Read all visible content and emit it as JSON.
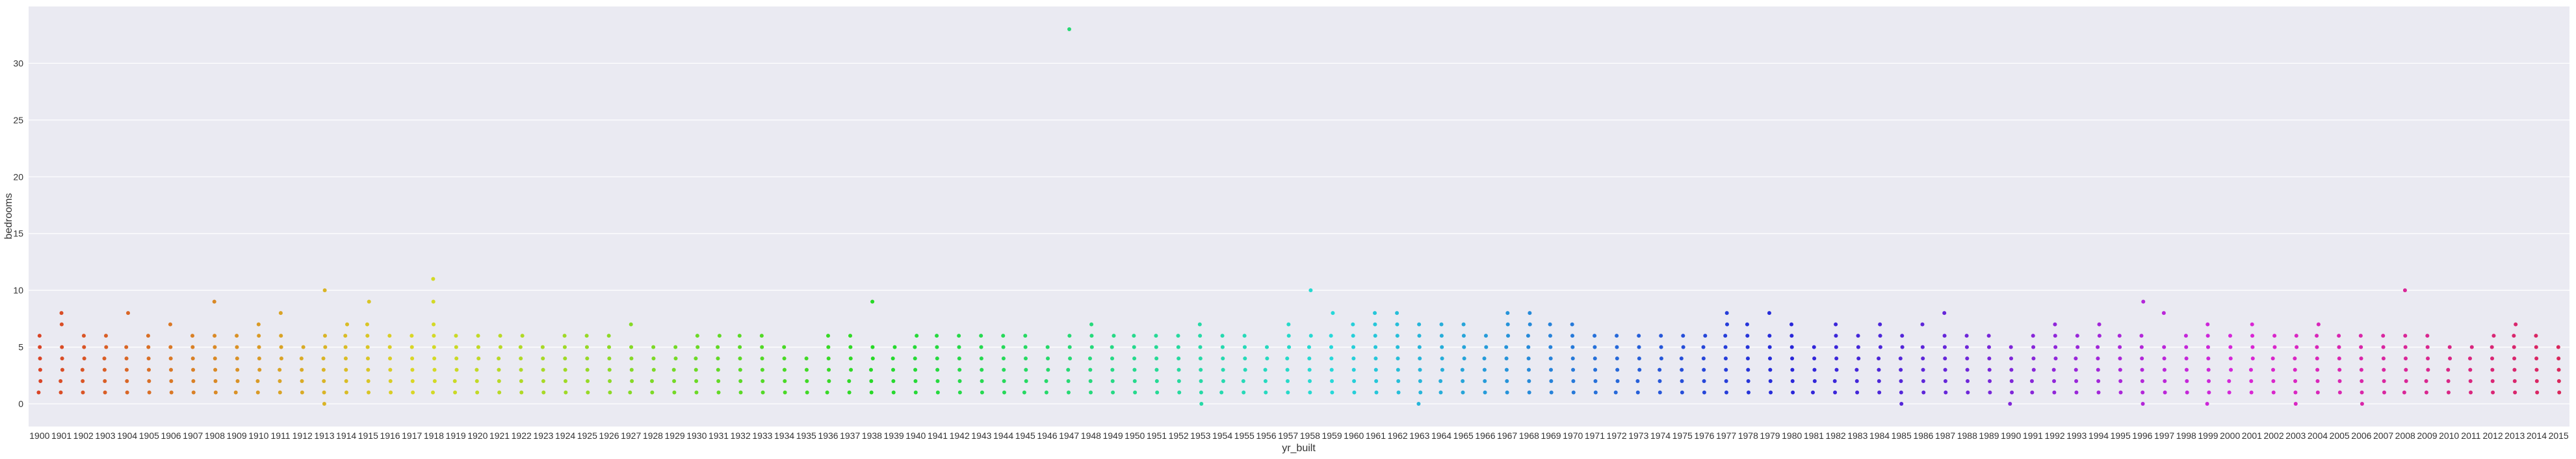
{
  "chart_data": {
    "type": "scatter",
    "subtype": "strip",
    "title": "",
    "xlabel": "yr_built",
    "ylabel": "bedrooms",
    "ylim": [
      -2,
      35
    ],
    "yticks": [
      0,
      5,
      10,
      15,
      20,
      25,
      30
    ],
    "grid": true,
    "legend": "none",
    "background": "#eaeaf2",
    "categories": [
      1900,
      1901,
      1902,
      1903,
      1904,
      1905,
      1906,
      1907,
      1908,
      1909,
      1910,
      1911,
      1912,
      1913,
      1914,
      1915,
      1916,
      1917,
      1918,
      1919,
      1920,
      1921,
      1922,
      1923,
      1924,
      1925,
      1926,
      1927,
      1928,
      1929,
      1930,
      1931,
      1932,
      1933,
      1934,
      1935,
      1936,
      1937,
      1938,
      1939,
      1940,
      1941,
      1942,
      1943,
      1944,
      1945,
      1946,
      1947,
      1948,
      1949,
      1950,
      1951,
      1952,
      1953,
      1954,
      1955,
      1956,
      1957,
      1958,
      1959,
      1960,
      1961,
      1962,
      1963,
      1964,
      1965,
      1966,
      1967,
      1968,
      1969,
      1970,
      1971,
      1972,
      1973,
      1974,
      1975,
      1976,
      1977,
      1978,
      1979,
      1980,
      1981,
      1982,
      1983,
      1984,
      1985,
      1986,
      1987,
      1988,
      1989,
      1990,
      1991,
      1992,
      1993,
      1994,
      1995,
      1996,
      1997,
      1998,
      1999,
      2000,
      2001,
      2002,
      2003,
      2004,
      2005,
      2006,
      2007,
      2008,
      2009,
      2010,
      2011,
      2012,
      2013,
      2014,
      2015
    ],
    "tick_labels": [
      "1900",
      "1901",
      "1902",
      "1903",
      "1904",
      "1905",
      "1906",
      "1907",
      "1908",
      "1909",
      "1910",
      "1911",
      "1912",
      "1913",
      "1914",
      "1915",
      "1916",
      "1917",
      "1918",
      "1919",
      "1920",
      "1921",
      "1922",
      "1923",
      "1924",
      "1925",
      "1926",
      "1927",
      "1928",
      "1929",
      "1930",
      "1931",
      "1932",
      "1933",
      "1934",
      "1935",
      "1936",
      "1937",
      "1938",
      "1939",
      "1940",
      "1941",
      "1942",
      "1943",
      "1944",
      "1945",
      "1946",
      "1947",
      "1948",
      "1949",
      "1950",
      "1951",
      "1952",
      "1953",
      "1954",
      "1955",
      "1956",
      "1957",
      "1958",
      "1959",
      "1960",
      "1961",
      "1962",
      "1963",
      "1964",
      "1965",
      "1966",
      "1967",
      "1968",
      "1969",
      "1970",
      "1971",
      "1972",
      "1973",
      "1974",
      "1975",
      "1976",
      "1977",
      "1978",
      "1979",
      "1980",
      "1981",
      "1982",
      "1983",
      "1984",
      "1985",
      "1986",
      "1987",
      "1988",
      "1989",
      "1990",
      "1991",
      "1992",
      "1993",
      "1994",
      "1995",
      "1996",
      "1997",
      "1998",
      "1999",
      "2000",
      "2001",
      "2002",
      "2003",
      "2004",
      "2005",
      "2006",
      "2007",
      "2008",
      "2009",
      "2010",
      "2011",
      "2012",
      "2013",
      "2014",
      "2015"
    ],
    "values": [
      [
        1,
        2,
        3,
        4,
        5,
        6
      ],
      [
        1,
        2,
        3,
        4,
        5,
        7,
        8
      ],
      [
        1,
        2,
        3,
        4,
        5,
        6
      ],
      [
        1,
        2,
        3,
        4,
        5,
        6
      ],
      [
        1,
        2,
        3,
        4,
        5,
        8
      ],
      [
        1,
        2,
        3,
        4,
        5,
        6
      ],
      [
        1,
        2,
        3,
        4,
        5,
        7
      ],
      [
        1,
        2,
        3,
        4,
        5,
        6
      ],
      [
        1,
        2,
        3,
        4,
        5,
        6,
        9
      ],
      [
        1,
        2,
        3,
        4,
        5,
        6
      ],
      [
        1,
        2,
        3,
        4,
        5,
        6,
        7
      ],
      [
        1,
        2,
        3,
        4,
        5,
        6,
        8
      ],
      [
        1,
        2,
        3,
        4,
        5
      ],
      [
        0,
        1,
        2,
        3,
        4,
        5,
        6,
        10
      ],
      [
        1,
        2,
        3,
        4,
        5,
        6,
        7
      ],
      [
        1,
        2,
        3,
        4,
        5,
        6,
        7,
        9
      ],
      [
        1,
        2,
        3,
        4,
        5,
        6
      ],
      [
        1,
        2,
        3,
        4,
        5,
        6
      ],
      [
        1,
        2,
        3,
        4,
        5,
        6,
        7,
        9,
        11
      ],
      [
        1,
        2,
        3,
        4,
        5,
        6
      ],
      [
        1,
        2,
        3,
        4,
        5,
        6
      ],
      [
        1,
        2,
        3,
        4,
        5,
        6
      ],
      [
        1,
        2,
        3,
        4,
        5,
        6
      ],
      [
        1,
        2,
        3,
        4,
        5
      ],
      [
        1,
        2,
        3,
        4,
        5,
        6
      ],
      [
        1,
        2,
        3,
        4,
        5,
        6
      ],
      [
        1,
        2,
        3,
        4,
        5,
        6
      ],
      [
        1,
        2,
        3,
        4,
        5,
        7
      ],
      [
        1,
        2,
        3,
        4,
        5
      ],
      [
        1,
        2,
        3,
        4,
        5
      ],
      [
        1,
        2,
        3,
        4,
        5,
        6
      ],
      [
        1,
        2,
        3,
        4,
        5,
        6
      ],
      [
        1,
        2,
        3,
        4,
        5,
        6
      ],
      [
        1,
        2,
        3,
        4,
        5,
        6
      ],
      [
        1,
        2,
        3,
        4,
        5
      ],
      [
        1,
        2,
        3,
        4
      ],
      [
        1,
        2,
        3,
        4,
        5,
        6
      ],
      [
        1,
        2,
        3,
        4,
        5,
        6
      ],
      [
        1,
        2,
        3,
        4,
        5,
        9
      ],
      [
        1,
        2,
        3,
        4,
        5
      ],
      [
        1,
        2,
        3,
        4,
        5,
        6
      ],
      [
        1,
        2,
        3,
        4,
        5,
        6
      ],
      [
        1,
        2,
        3,
        4,
        5,
        6
      ],
      [
        1,
        2,
        3,
        4,
        5,
        6
      ],
      [
        1,
        2,
        3,
        4,
        5,
        6
      ],
      [
        1,
        2,
        3,
        4,
        5,
        6
      ],
      [
        1,
        2,
        3,
        4,
        5
      ],
      [
        1,
        2,
        3,
        4,
        5,
        6,
        33
      ],
      [
        1,
        2,
        3,
        4,
        5,
        6,
        7
      ],
      [
        1,
        2,
        3,
        4,
        5,
        6
      ],
      [
        1,
        2,
        3,
        4,
        5,
        6
      ],
      [
        1,
        2,
        3,
        4,
        5,
        6
      ],
      [
        1,
        2,
        3,
        4,
        5,
        6
      ],
      [
        0,
        1,
        2,
        3,
        4,
        5,
        6,
        7
      ],
      [
        1,
        2,
        3,
        4,
        5,
        6
      ],
      [
        1,
        2,
        3,
        4,
        5,
        6
      ],
      [
        1,
        2,
        3,
        4,
        5
      ],
      [
        1,
        2,
        3,
        4,
        5,
        6,
        7
      ],
      [
        1,
        2,
        3,
        4,
        5,
        6,
        10
      ],
      [
        1,
        2,
        3,
        4,
        5,
        6,
        8
      ],
      [
        1,
        2,
        3,
        4,
        5,
        6,
        7
      ],
      [
        1,
        2,
        3,
        4,
        5,
        6,
        7,
        8
      ],
      [
        1,
        2,
        3,
        4,
        5,
        6,
        7,
        8
      ],
      [
        0,
        1,
        2,
        3,
        4,
        5,
        6,
        7
      ],
      [
        1,
        2,
        3,
        4,
        5,
        6,
        7
      ],
      [
        1,
        2,
        3,
        4,
        5,
        6,
        7
      ],
      [
        1,
        2,
        3,
        4,
        5,
        6
      ],
      [
        1,
        2,
        3,
        4,
        5,
        6,
        7,
        8
      ],
      [
        1,
        2,
        3,
        4,
        5,
        6,
        7,
        8
      ],
      [
        1,
        2,
        3,
        4,
        5,
        6,
        7
      ],
      [
        1,
        2,
        3,
        4,
        5,
        6,
        7
      ],
      [
        1,
        2,
        3,
        4,
        5,
        6
      ],
      [
        1,
        2,
        3,
        4,
        5,
        6
      ],
      [
        1,
        2,
        3,
        4,
        5,
        6
      ],
      [
        1,
        2,
        3,
        4,
        5,
        6
      ],
      [
        1,
        2,
        3,
        4,
        5,
        6
      ],
      [
        1,
        2,
        3,
        4,
        5,
        6
      ],
      [
        1,
        2,
        3,
        4,
        5,
        6,
        7,
        8
      ],
      [
        1,
        2,
        3,
        4,
        5,
        6,
        7
      ],
      [
        1,
        2,
        3,
        4,
        5,
        6,
        8
      ],
      [
        1,
        2,
        3,
        4,
        5,
        6,
        7
      ],
      [
        1,
        2,
        3,
        4,
        5
      ],
      [
        1,
        2,
        3,
        4,
        5,
        6,
        7
      ],
      [
        1,
        2,
        3,
        4,
        5,
        6
      ],
      [
        1,
        2,
        3,
        4,
        5,
        6,
        7
      ],
      [
        0,
        1,
        2,
        3,
        4,
        5,
        6
      ],
      [
        1,
        2,
        3,
        4,
        5,
        7
      ],
      [
        1,
        2,
        3,
        4,
        5,
        6,
        8
      ],
      [
        1,
        2,
        3,
        4,
        5,
        6
      ],
      [
        1,
        2,
        3,
        4,
        5,
        6
      ],
      [
        0,
        1,
        2,
        3,
        4,
        5
      ],
      [
        1,
        2,
        3,
        4,
        5,
        6
      ],
      [
        1,
        2,
        3,
        4,
        5,
        6,
        7
      ],
      [
        1,
        2,
        3,
        4,
        5,
        6
      ],
      [
        1,
        2,
        3,
        4,
        5,
        6,
        7
      ],
      [
        1,
        2,
        3,
        4,
        5,
        6
      ],
      [
        0,
        1,
        2,
        3,
        4,
        5,
        6,
        9
      ],
      [
        1,
        2,
        3,
        4,
        5,
        8
      ],
      [
        1,
        2,
        3,
        4,
        5,
        6
      ],
      [
        0,
        1,
        2,
        3,
        4,
        5,
        6,
        7
      ],
      [
        1,
        2,
        3,
        4,
        5,
        6
      ],
      [
        1,
        2,
        3,
        4,
        5,
        6,
        7
      ],
      [
        1,
        2,
        3,
        4,
        5,
        6
      ],
      [
        0,
        1,
        2,
        3,
        4,
        5,
        6
      ],
      [
        1,
        2,
        3,
        4,
        5,
        6,
        7
      ],
      [
        1,
        2,
        3,
        4,
        5,
        6
      ],
      [
        0,
        1,
        2,
        3,
        4,
        5,
        6
      ],
      [
        1,
        2,
        3,
        4,
        5,
        6
      ],
      [
        1,
        2,
        3,
        4,
        5,
        6,
        10
      ],
      [
        1,
        2,
        3,
        4,
        5,
        6
      ],
      [
        1,
        2,
        3,
        4,
        5
      ],
      [
        1,
        2,
        3,
        4,
        5
      ],
      [
        1,
        2,
        3,
        4,
        5,
        6
      ],
      [
        1,
        2,
        3,
        4,
        5,
        6,
        7
      ],
      [
        1,
        2,
        3,
        4,
        5,
        6
      ],
      [
        1,
        2,
        3,
        4,
        5
      ]
    ]
  }
}
